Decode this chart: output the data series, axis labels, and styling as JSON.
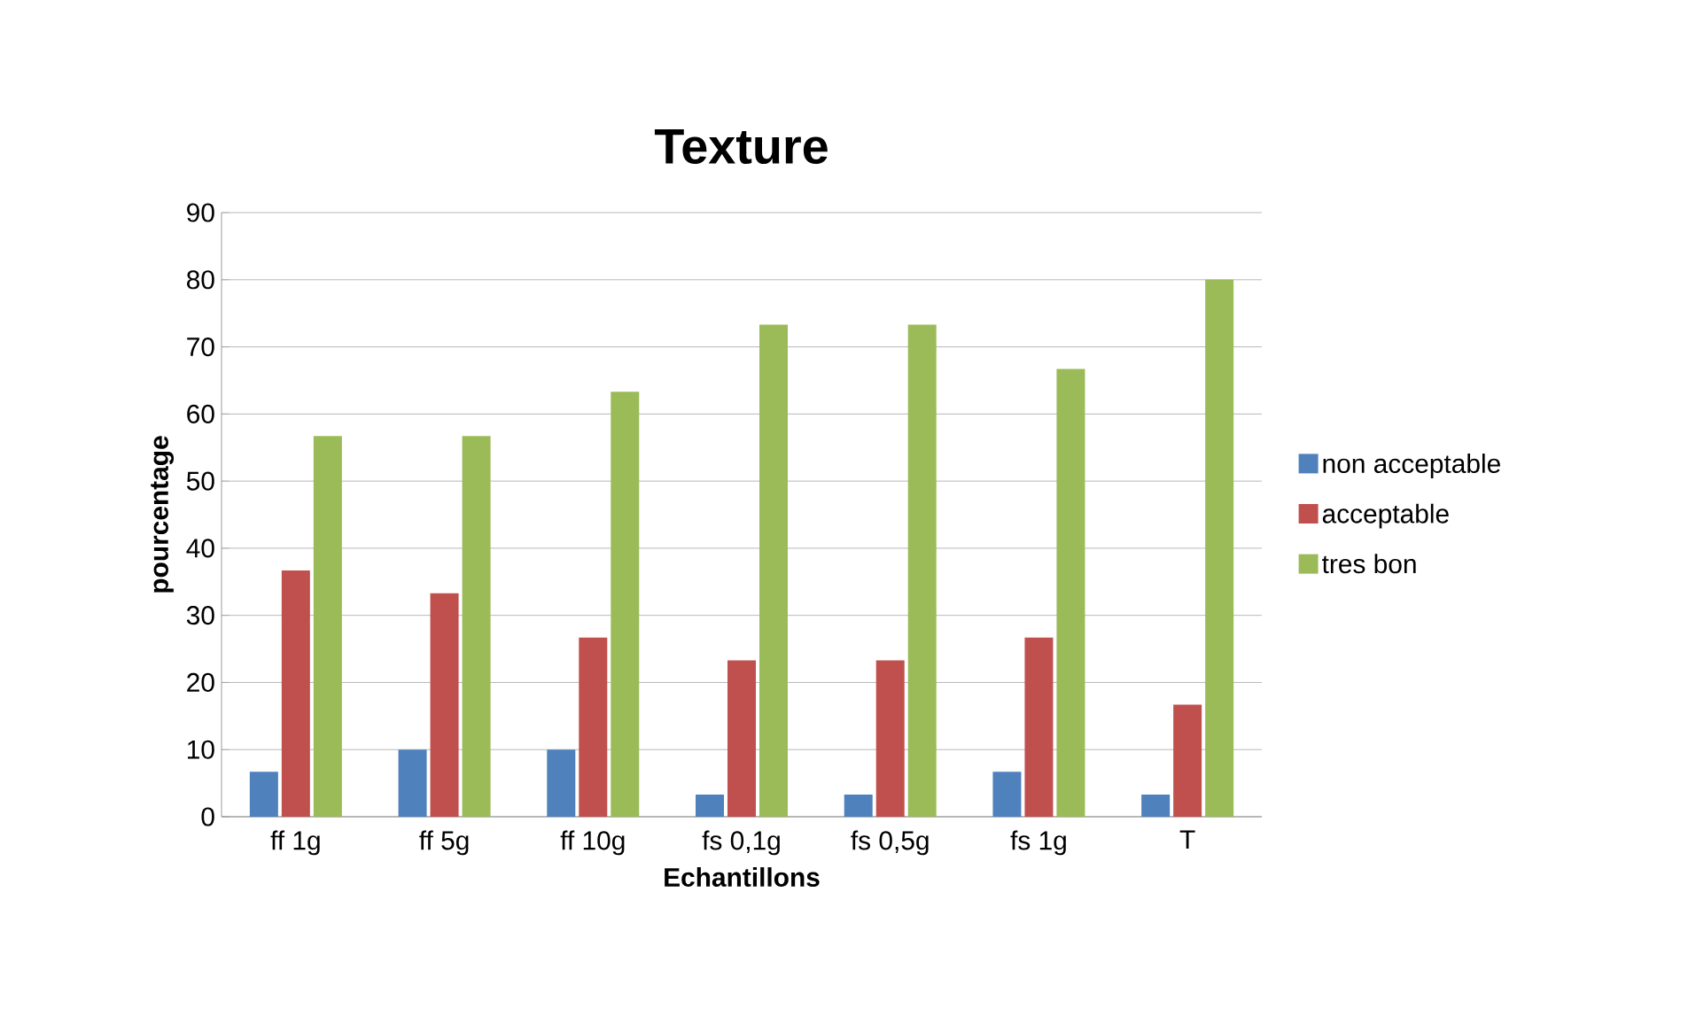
{
  "chart_data": {
    "type": "bar",
    "title": "Texture",
    "xlabel": "Echantillons",
    "ylabel": "pourcentage",
    "categories": [
      "ff 1g",
      "ff 5g",
      "ff 10g",
      "fs 0,1g",
      "fs 0,5g",
      "fs 1g",
      "T"
    ],
    "series": [
      {
        "name": "non acceptable",
        "color": "#4f81bd",
        "values": [
          6.7,
          10,
          10,
          3.3,
          3.3,
          6.7,
          3.3
        ]
      },
      {
        "name": "acceptable",
        "color": "#c0504d",
        "values": [
          36.7,
          33.3,
          26.7,
          23.3,
          23.3,
          26.7,
          16.7
        ]
      },
      {
        "name": "tres bon",
        "color": "#9bbb59",
        "values": [
          56.7,
          56.7,
          63.3,
          73.3,
          73.3,
          66.7,
          80
        ]
      }
    ],
    "ylim": [
      0,
      90
    ],
    "yticks": [
      0,
      10,
      20,
      30,
      40,
      50,
      60,
      70,
      80,
      90
    ],
    "grid": "y",
    "legend": "right"
  }
}
